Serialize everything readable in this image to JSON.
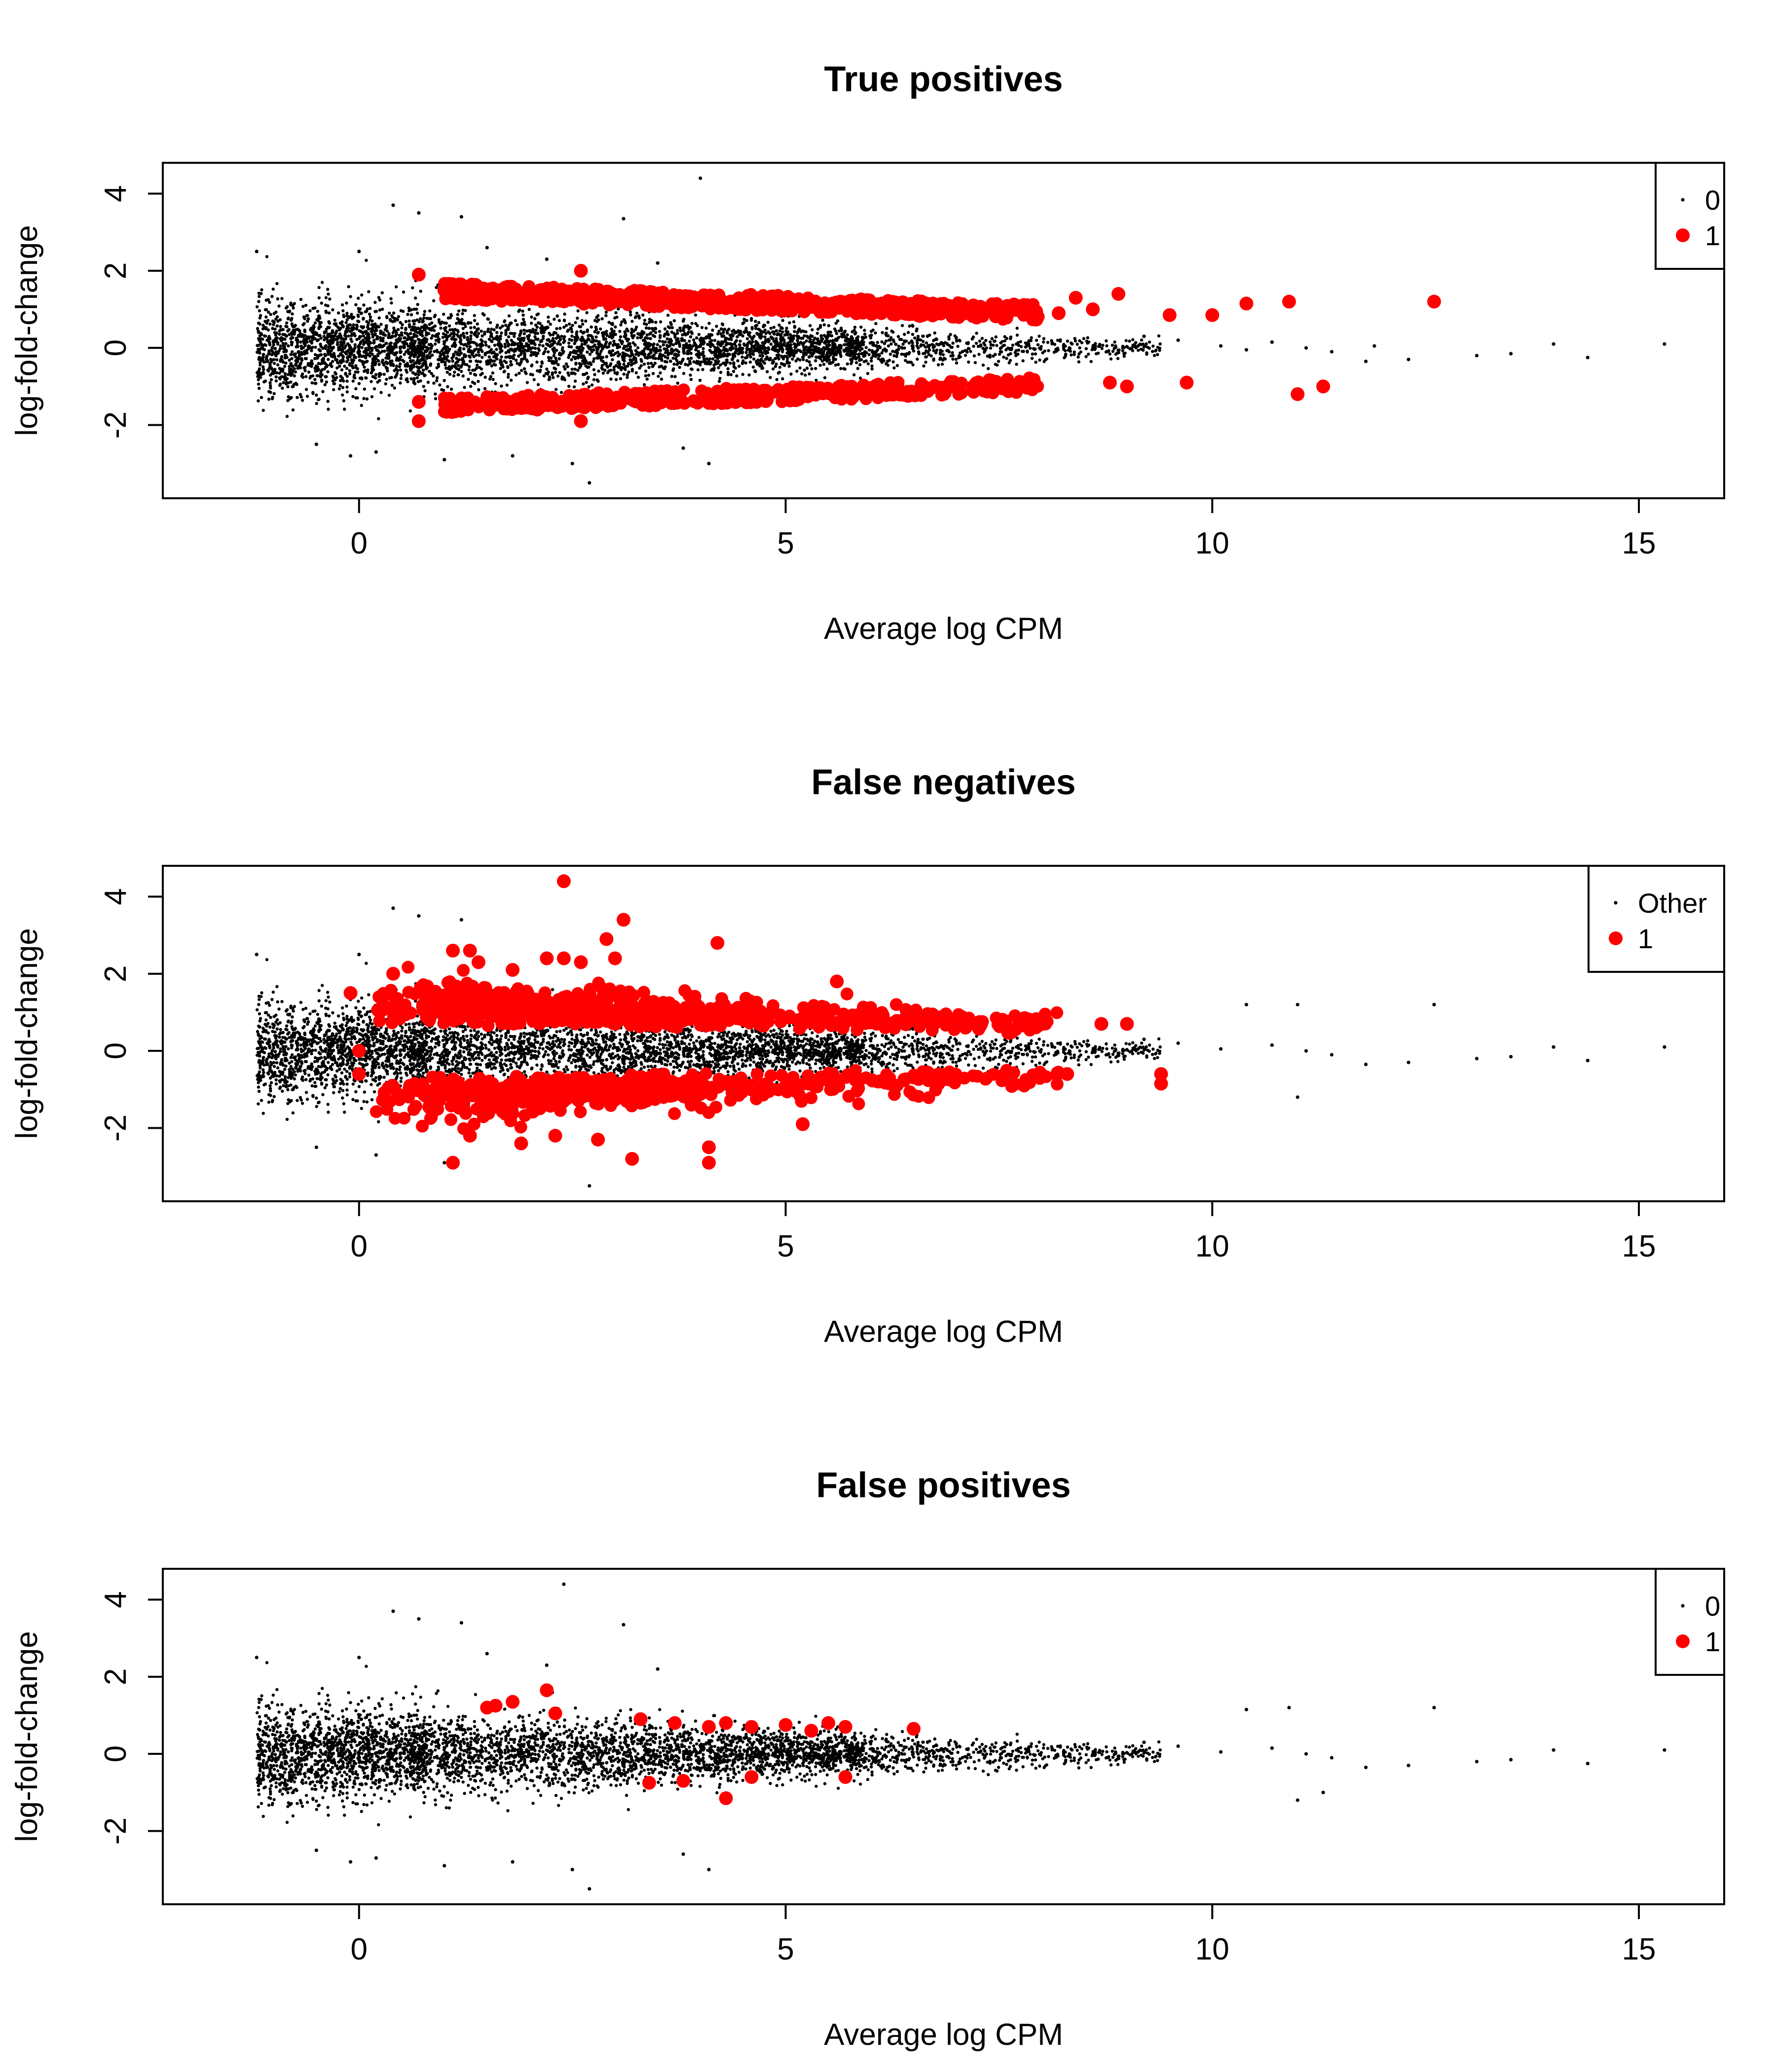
{
  "colors": {
    "background": "#ffffff",
    "ink": "#000000",
    "highlight": "#ff0000"
  },
  "chart_data": [
    {
      "type": "scatter",
      "title": "True positives",
      "xlabel": "Average log CPM",
      "ylabel": "log-fold-change",
      "xlim": [
        -2.3,
        16
      ],
      "ylim": [
        -3.9,
        4.8
      ],
      "xticks": [
        0,
        5,
        10,
        15
      ],
      "yticks": [
        -2,
        0,
        2,
        4
      ],
      "legend": {
        "position": "top-right",
        "entries": [
          {
            "label": "0",
            "marker": "small-dot",
            "color": "#000000"
          },
          {
            "label": "1",
            "marker": "large-dot",
            "color": "#ff0000"
          }
        ]
      },
      "series": [
        {
          "name": "0",
          "color": "#000000",
          "marker": "small-dot",
          "points": [
            [
              4.0,
              4.4
            ],
            [
              0.4,
              3.7
            ],
            [
              0.7,
              3.5
            ],
            [
              1.2,
              3.4
            ],
            [
              3.1,
              3.35
            ],
            [
              1.5,
              2.6
            ],
            [
              0.0,
              2.5
            ],
            [
              -1.2,
              2.5
            ],
            [
              2.2,
              2.3
            ],
            [
              3.5,
              2.2
            ],
            [
              -0.5,
              -2.5
            ],
            [
              0.2,
              -2.7
            ],
            [
              1.0,
              -2.9
            ],
            [
              4.1,
              -3.0
            ],
            [
              2.7,
              -3.5
            ],
            [
              1.8,
              -2.8
            ],
            [
              -0.1,
              -2.8
            ],
            [
              2.5,
              -3.0
            ],
            [
              3.8,
              -2.6
            ],
            [
              9.2,
              0.3
            ],
            [
              9.6,
              0.2
            ],
            [
              10.1,
              0.05
            ],
            [
              10.7,
              0.15
            ],
            [
              11.1,
              0.0
            ],
            [
              11.4,
              -0.1
            ],
            [
              11.8,
              -0.35
            ],
            [
              12.3,
              -0.3
            ],
            [
              13.1,
              -0.2
            ],
            [
              13.5,
              -0.15
            ],
            [
              14.0,
              0.1
            ],
            [
              14.4,
              -0.25
            ],
            [
              15.3,
              0.1
            ],
            [
              11.9,
              0.05
            ],
            [
              10.4,
              -0.05
            ]
          ]
        },
        {
          "name": "1",
          "color": "#ff0000",
          "marker": "large-dot",
          "points": [
            [
              2.6,
              2.0
            ],
            [
              0.7,
              1.9
            ],
            [
              1.0,
              1.5
            ],
            [
              8.4,
              1.3
            ],
            [
              8.9,
              1.4
            ],
            [
              9.5,
              0.85
            ],
            [
              10.0,
              0.85
            ],
            [
              10.4,
              1.15
            ],
            [
              10.9,
              1.2
            ],
            [
              12.6,
              1.2
            ],
            [
              8.6,
              1.0
            ],
            [
              8.2,
              0.9
            ],
            [
              0.7,
              -1.4
            ],
            [
              0.7,
              -1.9
            ],
            [
              2.6,
              -1.9
            ],
            [
              8.8,
              -0.9
            ],
            [
              9.0,
              -1.0
            ],
            [
              9.7,
              -0.9
            ],
            [
              11.0,
              -1.2
            ],
            [
              11.3,
              -1.0
            ],
            [
              7.5,
              -1.0
            ],
            [
              5.9,
              1.0
            ],
            [
              3.5,
              1.4
            ],
            [
              7.2,
              1.1
            ]
          ]
        }
      ]
    },
    {
      "type": "scatter",
      "title": "False negatives",
      "xlabel": "Average log CPM",
      "ylabel": "log-fold-change",
      "xlim": [
        -2.3,
        16
      ],
      "ylim": [
        -3.9,
        4.8
      ],
      "xticks": [
        0,
        5,
        10,
        15
      ],
      "yticks": [
        -2,
        0,
        2,
        4
      ],
      "legend": {
        "position": "top-right",
        "entries": [
          {
            "label": "Other",
            "marker": "small-dot",
            "color": "#000000"
          },
          {
            "label": "1",
            "marker": "large-dot",
            "color": "#ff0000"
          }
        ]
      },
      "series": [
        {
          "name": "Other",
          "color": "#000000",
          "marker": "small-dot",
          "points": [
            [
              0.4,
              3.7
            ],
            [
              0.7,
              3.5
            ],
            [
              1.2,
              3.4
            ],
            [
              3.1,
              3.35
            ],
            [
              0.0,
              2.5
            ],
            [
              -1.2,
              2.5
            ],
            [
              -0.5,
              -2.5
            ],
            [
              0.2,
              -2.7
            ],
            [
              1.0,
              -2.9
            ],
            [
              4.1,
              -3.0
            ],
            [
              2.7,
              -3.5
            ],
            [
              9.2,
              0.3
            ],
            [
              9.6,
              0.2
            ],
            [
              10.1,
              0.05
            ],
            [
              10.7,
              0.15
            ],
            [
              11.1,
              0.0
            ],
            [
              11.4,
              -0.1
            ],
            [
              11.8,
              -0.35
            ],
            [
              12.3,
              -0.3
            ],
            [
              13.1,
              -0.2
            ],
            [
              13.5,
              -0.15
            ],
            [
              14.0,
              0.1
            ],
            [
              14.4,
              -0.25
            ],
            [
              15.3,
              0.1
            ],
            [
              10.4,
              1.2
            ],
            [
              11.0,
              1.2
            ],
            [
              12.6,
              1.2
            ],
            [
              11.0,
              -1.2
            ]
          ]
        },
        {
          "name": "1",
          "color": "#ff0000",
          "marker": "large-dot",
          "points": [
            [
              2.4,
              4.4
            ],
            [
              3.1,
              3.4
            ],
            [
              2.9,
              2.9
            ],
            [
              4.2,
              2.8
            ],
            [
              1.1,
              2.6
            ],
            [
              1.3,
              2.6
            ],
            [
              1.4,
              2.3
            ],
            [
              1.8,
              2.1
            ],
            [
              2.2,
              2.4
            ],
            [
              2.4,
              2.4
            ],
            [
              2.6,
              2.3
            ],
            [
              3.0,
              2.4
            ],
            [
              0.4,
              2.0
            ],
            [
              -0.1,
              1.5
            ],
            [
              5.6,
              1.8
            ],
            [
              4.1,
              -2.5
            ],
            [
              4.1,
              -2.9
            ],
            [
              1.1,
              -2.9
            ],
            [
              3.2,
              -2.8
            ],
            [
              5.2,
              -1.9
            ],
            [
              1.3,
              -2.2
            ],
            [
              1.9,
              -2.4
            ],
            [
              2.3,
              -2.2
            ],
            [
              2.8,
              -2.3
            ],
            [
              0.0,
              0.0
            ],
            [
              0.0,
              -0.6
            ],
            [
              8.7,
              0.7
            ],
            [
              9.0,
              0.7
            ],
            [
              9.4,
              -0.6
            ],
            [
              9.4,
              -0.85
            ],
            [
              8.3,
              -0.6
            ],
            [
              7.8,
              0.85
            ]
          ]
        }
      ]
    },
    {
      "type": "scatter",
      "title": "False positives",
      "xlabel": "Average log CPM",
      "ylabel": "log-fold-change",
      "xlim": [
        -2.3,
        16
      ],
      "ylim": [
        -3.9,
        4.8
      ],
      "xticks": [
        0,
        5,
        10,
        15
      ],
      "yticks": [
        -2,
        0,
        2,
        4
      ],
      "legend": {
        "position": "top-right",
        "entries": [
          {
            "label": "0",
            "marker": "small-dot",
            "color": "#000000"
          },
          {
            "label": "1",
            "marker": "large-dot",
            "color": "#ff0000"
          }
        ]
      },
      "series": [
        {
          "name": "0",
          "color": "#000000",
          "marker": "small-dot",
          "points": [
            [
              2.4,
              4.4
            ],
            [
              0.4,
              3.7
            ],
            [
              0.7,
              3.5
            ],
            [
              1.2,
              3.4
            ],
            [
              3.1,
              3.35
            ],
            [
              1.5,
              2.6
            ],
            [
              0.0,
              2.5
            ],
            [
              -1.2,
              2.5
            ],
            [
              2.2,
              2.3
            ],
            [
              3.5,
              2.2
            ],
            [
              -0.5,
              -2.5
            ],
            [
              0.2,
              -2.7
            ],
            [
              1.0,
              -2.9
            ],
            [
              4.1,
              -3.0
            ],
            [
              2.7,
              -3.5
            ],
            [
              1.8,
              -2.8
            ],
            [
              -0.1,
              -2.8
            ],
            [
              2.5,
              -3.0
            ],
            [
              3.8,
              -2.6
            ],
            [
              9.2,
              0.3
            ],
            [
              9.6,
              0.2
            ],
            [
              10.1,
              0.05
            ],
            [
              10.7,
              0.15
            ],
            [
              11.1,
              0.0
            ],
            [
              11.4,
              -0.1
            ],
            [
              11.8,
              -0.35
            ],
            [
              12.3,
              -0.3
            ],
            [
              13.1,
              -0.2
            ],
            [
              13.5,
              -0.15
            ],
            [
              14.0,
              0.1
            ],
            [
              14.4,
              -0.25
            ],
            [
              15.3,
              0.1
            ],
            [
              10.4,
              1.15
            ],
            [
              10.9,
              1.2
            ],
            [
              12.6,
              1.2
            ],
            [
              11.0,
              -1.2
            ],
            [
              11.3,
              -1.0
            ]
          ]
        },
        {
          "name": "1",
          "color": "#ff0000",
          "marker": "large-dot",
          "points": [
            [
              1.5,
              1.2
            ],
            [
              1.6,
              1.25
            ],
            [
              1.8,
              1.35
            ],
            [
              2.2,
              1.65
            ],
            [
              2.3,
              1.05
            ],
            [
              3.3,
              0.9
            ],
            [
              3.7,
              0.8
            ],
            [
              4.1,
              0.7
            ],
            [
              4.3,
              0.8
            ],
            [
              4.6,
              0.7
            ],
            [
              5.0,
              0.75
            ],
            [
              5.3,
              0.6
            ],
            [
              5.5,
              0.8
            ],
            [
              5.7,
              0.7
            ],
            [
              6.5,
              0.65
            ],
            [
              3.4,
              -0.75
            ],
            [
              3.8,
              -0.7
            ],
            [
              4.3,
              -1.15
            ],
            [
              4.6,
              -0.6
            ],
            [
              5.7,
              -0.6
            ]
          ]
        }
      ]
    }
  ]
}
